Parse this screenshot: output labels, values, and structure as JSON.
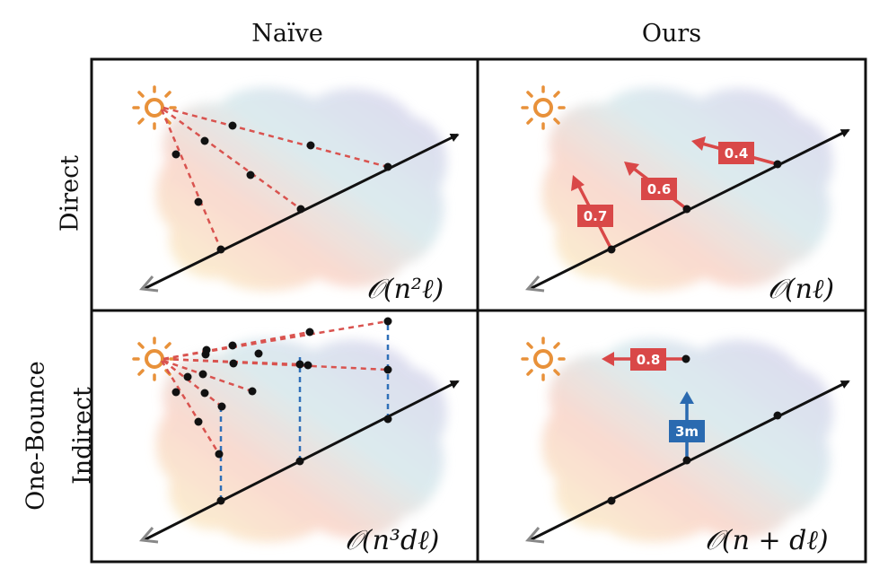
{
  "columns": {
    "naive": "Naïve",
    "ours": "Ours"
  },
  "rows": {
    "direct": "Direct",
    "indirect_line1": "One-Bounce",
    "indirect_line2": "Indirect"
  },
  "complexity": {
    "naive_direct": "𝒪(n²ℓ)",
    "ours_direct": "𝒪(nℓ)",
    "naive_indirect": "𝒪(n³dℓ)",
    "ours_indirect": "𝒪(n + dℓ)"
  },
  "labels": {
    "ours_direct": [
      "0.7",
      "0.6",
      "0.4"
    ],
    "ours_indirect_light": "0.8",
    "ours_indirect_distance": "3m"
  },
  "colors": {
    "sun": "#e8913a",
    "red_dash": "#d9534f",
    "blue_dash": "#2e6fb8",
    "arrow_red": "#d94848",
    "arrow_blue": "#2a6ab0",
    "ray": "#111111",
    "ray_tail": "#888888"
  }
}
